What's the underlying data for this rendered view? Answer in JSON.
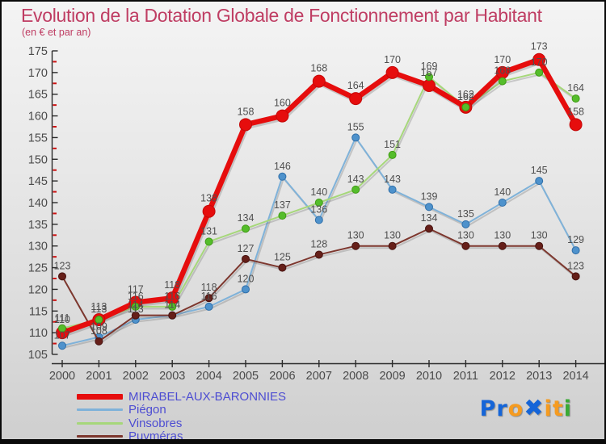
{
  "chart_data": {
    "type": "line",
    "title": "Evolution de la Dotation Globale de Fonctionnement par Habitant",
    "subtitle": "(en € et par an)",
    "x": [
      2000,
      2001,
      2002,
      2003,
      2004,
      2005,
      2006,
      2007,
      2008,
      2009,
      2010,
      2011,
      2012,
      2013,
      2014
    ],
    "xlabel": "",
    "ylabel": "",
    "ylim": [
      105,
      175
    ],
    "ytick_step": 5,
    "minor_tick_step": 2.5,
    "grid": false,
    "point_labels": true,
    "legend_position": "bottom-left",
    "colors": {
      "title": "#bf3d63",
      "tick_labels": "#4a4a4a",
      "point_labels": "#4f4f4f",
      "axis": "#2a2a2a",
      "minor_tick": "#cc1111",
      "legend_text": "#4d4dd2"
    },
    "series": [
      {
        "name": "MIRABEL-AUX-BARONNIES",
        "color": "#e60d0d",
        "dot_color": "#e60d0d",
        "dot_stroke": "#c40909",
        "line_width": 6.5,
        "dot_radius": 7.5,
        "swatch_height": 7,
        "values": [
          110,
          113,
          117,
          118,
          138,
          158,
          160,
          168,
          164,
          170,
          167,
          162,
          170,
          173,
          158
        ]
      },
      {
        "name": "Piégon",
        "color": "#7fb2d9",
        "dot_color": "#4e92cc",
        "dot_stroke": "#2f6ea8",
        "line_width": 2,
        "dot_radius": 4.5,
        "swatch_height": 3,
        "values": [
          107,
          109,
          113,
          114,
          116,
          120,
          146,
          136,
          155,
          143,
          139,
          135,
          140,
          145,
          129
        ]
      },
      {
        "name": "Vinsobres",
        "color": "#a6d77a",
        "dot_color": "#55bd2b",
        "dot_stroke": "#3f9b14",
        "line_width": 2,
        "dot_radius": 4.5,
        "swatch_height": 3,
        "values": [
          111,
          113,
          116,
          116,
          131,
          134,
          137,
          140,
          143,
          151,
          169,
          162,
          168,
          170,
          164
        ]
      },
      {
        "name": "Puyméras",
        "color": "#7d372e",
        "dot_color": "#661f19",
        "dot_stroke": "#471310",
        "line_width": 2,
        "dot_radius": 4.5,
        "swatch_height": 3,
        "values": [
          123,
          108,
          114,
          114,
          118,
          127,
          125,
          128,
          130,
          130,
          134,
          130,
          130,
          130,
          123
        ]
      }
    ]
  },
  "logo": {
    "text": "Proxiti",
    "segments": [
      {
        "text": "Pr",
        "color": "#1565d8",
        "x": false
      },
      {
        "text": "o",
        "color": "#f59b20",
        "x": false
      },
      {
        "text": "✖",
        "color": "#1565d8",
        "x": true
      },
      {
        "text": "i",
        "color": "#f59b20",
        "x": false
      },
      {
        "text": "t",
        "color": "#f59b20",
        "x": false
      },
      {
        "text": "i",
        "color": "#3aaa35",
        "x": false
      }
    ]
  }
}
